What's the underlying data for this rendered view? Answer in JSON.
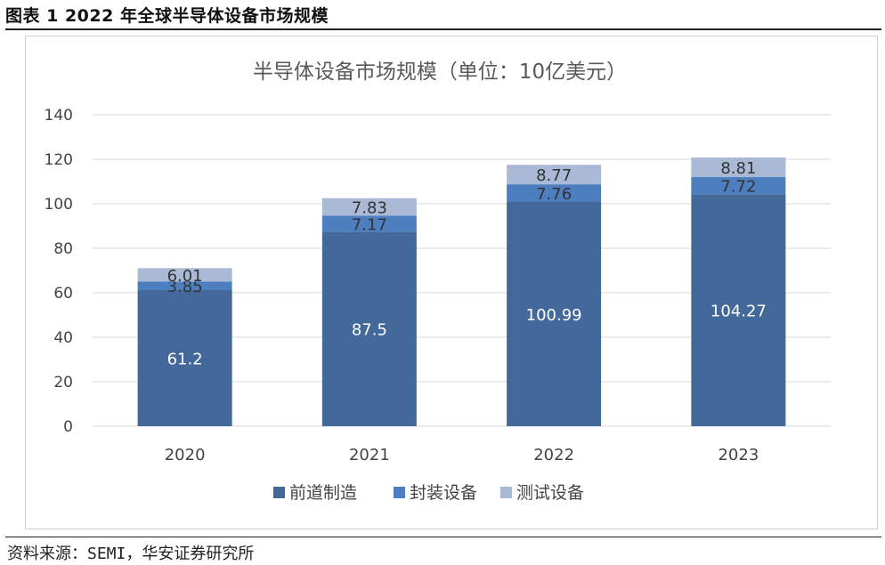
{
  "figure_title": "图表 1 2022 年全球半导体设备市场规模",
  "source": {
    "label": "资料来源：",
    "text": "SEMI，华安证券研究所"
  },
  "chart_data": {
    "type": "bar",
    "stacked": true,
    "title": "半导体设备市场规模（单位：10亿美元）",
    "categories": [
      "2020",
      "2021",
      "2022",
      "2023"
    ],
    "series": [
      {
        "name": "前道制造",
        "values": [
          61.2,
          87.5,
          100.99,
          104.27
        ],
        "labels": [
          "61.2",
          "87.5",
          "100.99",
          "104.27"
        ],
        "color": "#42699a"
      },
      {
        "name": "封装设备",
        "values": [
          3.85,
          7.17,
          7.76,
          7.72
        ],
        "labels": [
          "3.85",
          "7.17",
          "7.76",
          "7.72"
        ],
        "color": "#4d7fc0"
      },
      {
        "name": "测试设备",
        "values": [
          6.01,
          7.83,
          8.77,
          8.81
        ],
        "labels": [
          "6.01",
          "7.83",
          "8.77",
          "8.81"
        ],
        "color": "#a9b9d6"
      }
    ],
    "ylim": [
      0,
      140
    ],
    "yticks": [
      "0",
      "20",
      "40",
      "60",
      "80",
      "100",
      "120",
      "140"
    ],
    "grid": true,
    "legend": "bottom"
  }
}
